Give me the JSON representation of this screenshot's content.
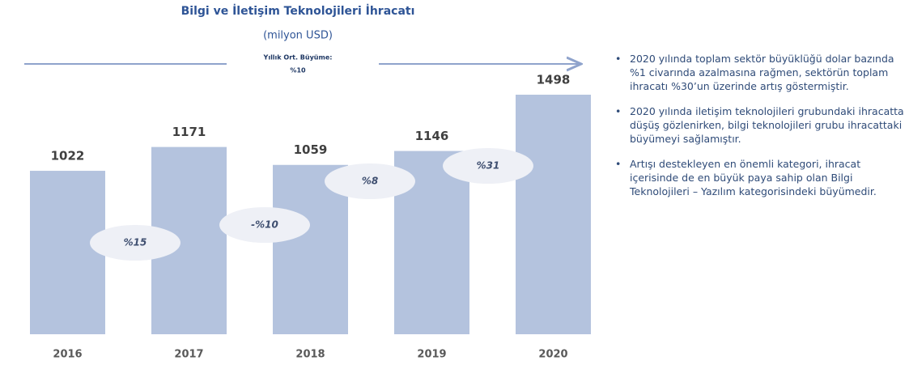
{
  "chart_data": {
    "type": "bar",
    "title": "Bilgi ve İletişim Teknolojileri İhracatı",
    "subtitle": "(milyon USD)",
    "annotation": [
      "Yıllık Ort. Büyüme:",
      "%10"
    ],
    "categories": [
      "2016",
      "2017",
      "2018",
      "2019",
      "2020"
    ],
    "values": [
      1022,
      1171,
      1059,
      1146,
      1498
    ],
    "color": "#b4c3de",
    "growth_labels": [
      "%15",
      "-%10",
      "%8",
      "%31"
    ],
    "bullets": [
      "2020 yılında toplam sektör büyüklüğü dolar bazında %1 civarında azalmasına rağmen, sektörün toplam ihracatı %30’un üzerinde artış göstermiştir.",
      "2020 yılında iletişim teknolojileri grubundaki ihracatta düşüş gözlenirken, bilgi teknolojileri grubu ihracattaki büyümeyi sağlamıştır.",
      "Artışı destekleyen en önemli kategori, ihracat içerisinde de en büyük paya sahip olan Bilgi Teknolojileri – Yazılım kategorisindeki büyümedir."
    ]
  }
}
